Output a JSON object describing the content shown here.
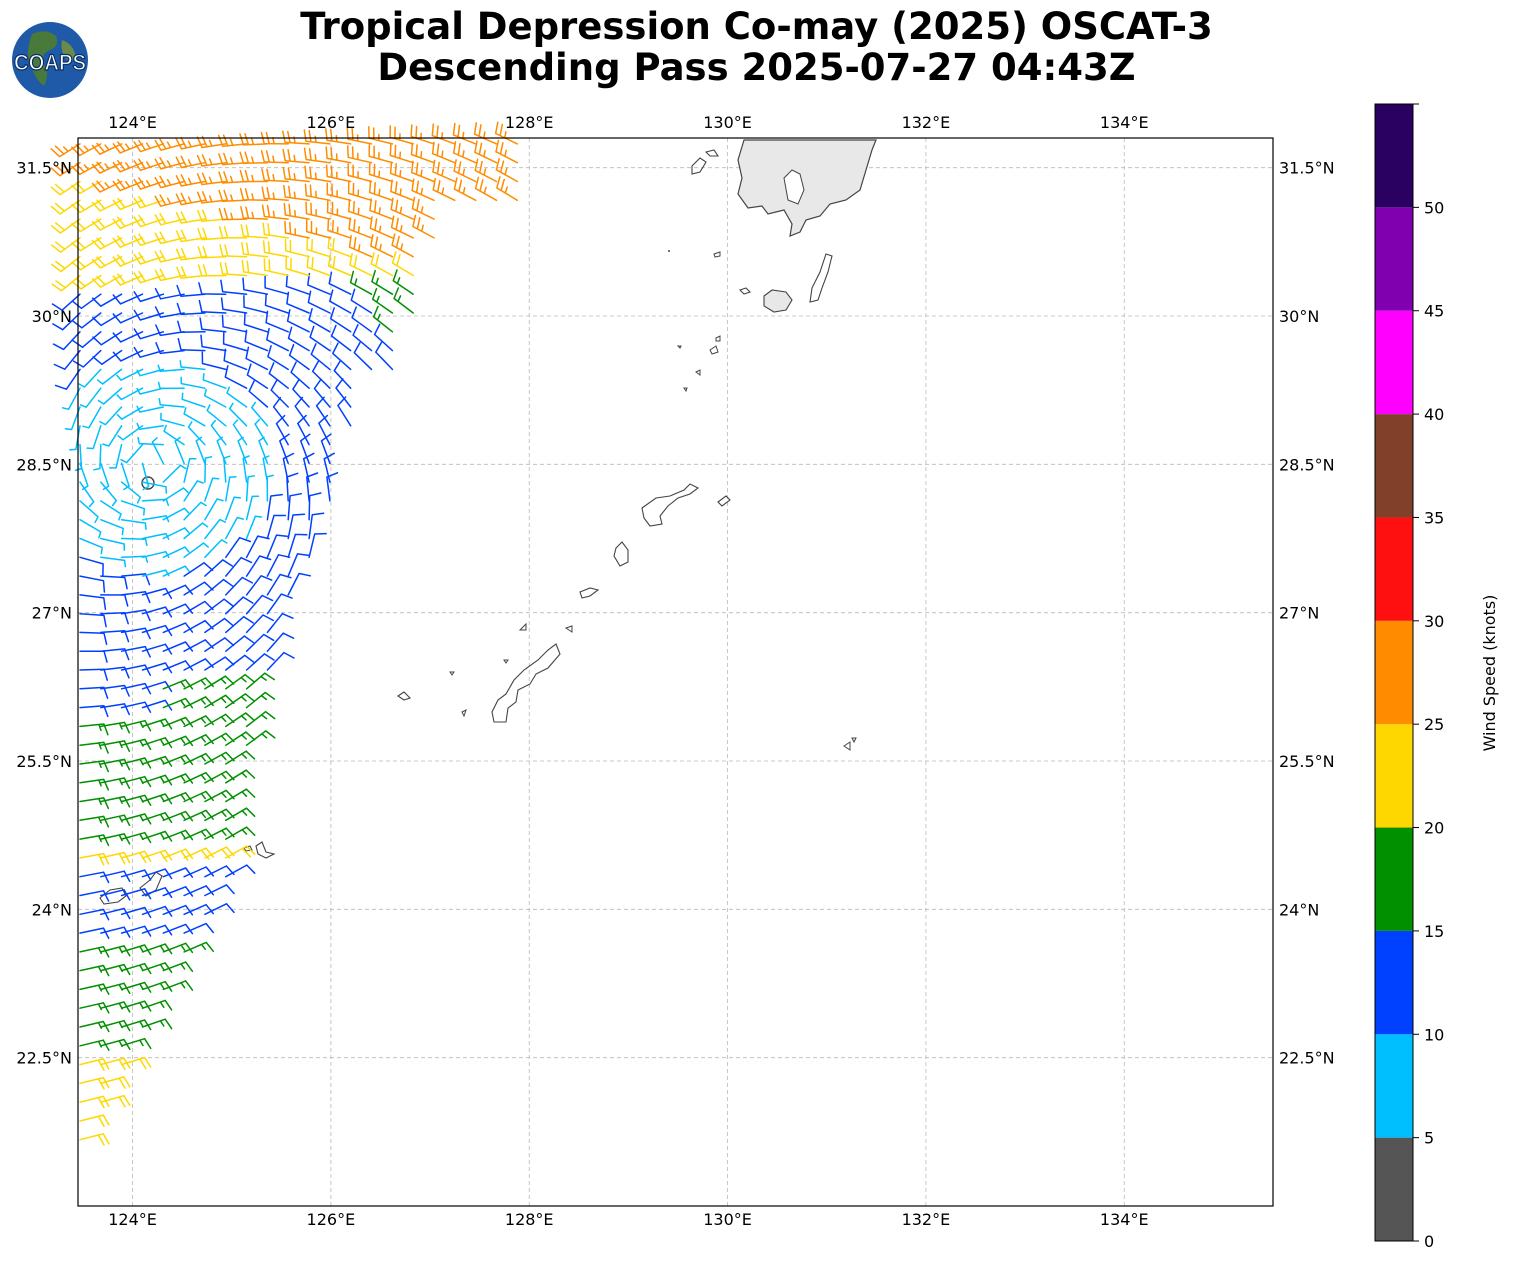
{
  "title": {
    "line1": "Tropical Depression Co-may (2025) OSCAT-3",
    "line2": "Descending Pass 2025-07-27 04:43Z"
  },
  "logo": {
    "text": "COAPS",
    "icon": "globe-icon"
  },
  "map": {
    "lon_ticks": [
      "124°E",
      "126°E",
      "128°E",
      "130°E",
      "132°E",
      "134°E"
    ],
    "lat_ticks": [
      "31.5°N",
      "30°N",
      "28.5°N",
      "27°N",
      "25.5°N",
      "24°N",
      "22.5°N"
    ],
    "lon_values": [
      124,
      126,
      128,
      130,
      132,
      134
    ],
    "lat_values": [
      31.5,
      30,
      28.5,
      27,
      25.5,
      24,
      22.5
    ],
    "extent": {
      "lon": [
        123.45,
        135.5
      ],
      "lat": [
        21.0,
        31.8
      ]
    },
    "gridlines": true,
    "storm_center": {
      "lon": 124.22,
      "lat": 28.5
    }
  },
  "colorbar": {
    "label": "Wind Speed (knots)",
    "ticks": [
      "0",
      "5",
      "10",
      "15",
      "20",
      "25",
      "30",
      "35",
      "40",
      "45",
      "50"
    ],
    "bins": [
      {
        "min": 0,
        "max": 5,
        "color": "#555555"
      },
      {
        "min": 5,
        "max": 10,
        "color": "#00bfff"
      },
      {
        "min": 10,
        "max": 15,
        "color": "#0040ff"
      },
      {
        "min": 15,
        "max": 20,
        "color": "#009000"
      },
      {
        "min": 20,
        "max": 25,
        "color": "#ffd700"
      },
      {
        "min": 25,
        "max": 30,
        "color": "#ff8c00"
      },
      {
        "min": 30,
        "max": 35,
        "color": "#ff1010"
      },
      {
        "min": 35,
        "max": 40,
        "color": "#80402a"
      },
      {
        "min": 40,
        "max": 45,
        "color": "#ff00ff"
      },
      {
        "min": 45,
        "max": 50,
        "color": "#8000b0"
      },
      {
        "min": 50,
        "max": 55,
        "color": "#2a0060"
      }
    ]
  }
}
